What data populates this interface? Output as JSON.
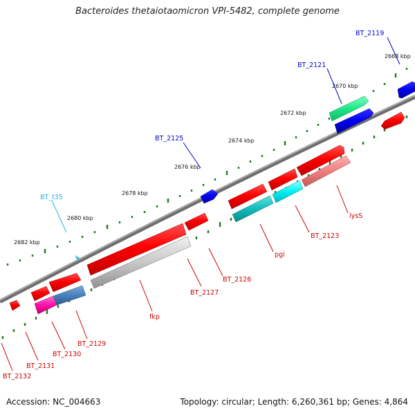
{
  "title": "Bacteroides thetaiotaomicron VPI-5482, complete genome",
  "footer": {
    "accession": "Accession: NC_004663",
    "stats": "Topology: circular; Length: 6,260,361 bp; Genes: 4,864"
  },
  "colors": {
    "backbone": "#808080",
    "tick": "#1f7a1f",
    "label_blue": "#0000cc",
    "label_red": "#cc0000",
    "label_cyan": "#22b8e8"
  },
  "scale_labels": [
    "2668 kbp",
    "2670 kbp",
    "2672 kbp",
    "2674 kbp",
    "2676 kbp",
    "2678 kbp",
    "2680 kbp",
    "2682 kbp"
  ],
  "gene_labels": {
    "BT_2119": "BT_2119",
    "BT_2121": "BT_2121",
    "BT_2125": "BT_2125",
    "BT_t35": "BT_t35",
    "lysS": "lysS",
    "BT_2123": "BT_2123",
    "pgi": "pgi",
    "BT_2126": "BT_2126",
    "BT_2127": "BT_2127",
    "fkp": "fkp",
    "BT_2129": "BT_2129",
    "BT_2130": "BT_2130",
    "BT_2131": "BT_2131",
    "BT_2132": "BT_2132"
  }
}
